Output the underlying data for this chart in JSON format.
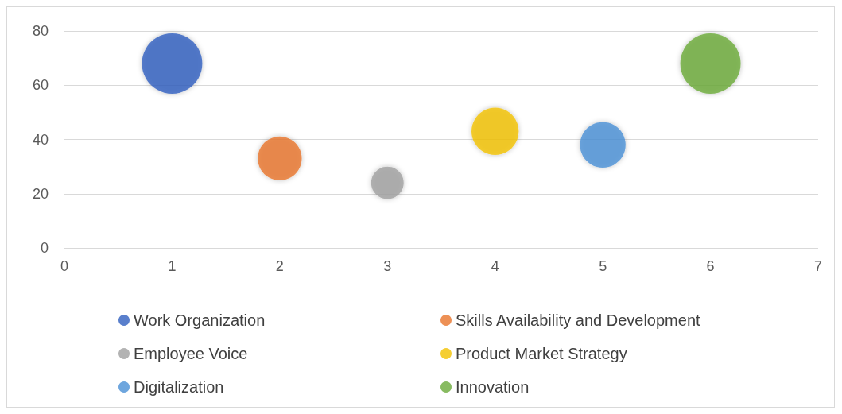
{
  "chart_data": {
    "type": "bubble",
    "relative": false,
    "series": [
      {
        "name": "Work Organization",
        "color": "#2f5fbf",
        "x": [
          1
        ],
        "values": [
          68
        ],
        "sizes": [
          1
        ]
      },
      {
        "name": "Skills Availability and Development",
        "color": "#e8742a",
        "x": [
          2
        ],
        "values": [
          33
        ],
        "sizes": [
          0.53
        ]
      },
      {
        "name": "Employee Voice",
        "color": "#a0a0a0",
        "x": [
          3
        ],
        "values": [
          24
        ],
        "sizes": [
          0.29
        ]
      },
      {
        "name": "Product Market Strategy",
        "color": "#f2c200",
        "x": [
          4
        ],
        "values": [
          43
        ],
        "sizes": [
          0.61
        ]
      },
      {
        "name": "Digitalization",
        "color": "#4a90d6",
        "x": [
          5
        ],
        "values": [
          38
        ],
        "sizes": [
          0.57
        ]
      },
      {
        "name": "Innovation",
        "color": "#6aaa3a",
        "x": [
          6
        ],
        "values": [
          68
        ],
        "sizes": [
          1
        ]
      }
    ],
    "xlim": [
      0,
      7
    ],
    "xticks": [
      0,
      1,
      2,
      3,
      4,
      5,
      6,
      7
    ],
    "ylim": [
      0,
      80
    ],
    "yticks": [
      0,
      20,
      40,
      60,
      80
    ],
    "grid": "y",
    "legend": "bottom"
  }
}
